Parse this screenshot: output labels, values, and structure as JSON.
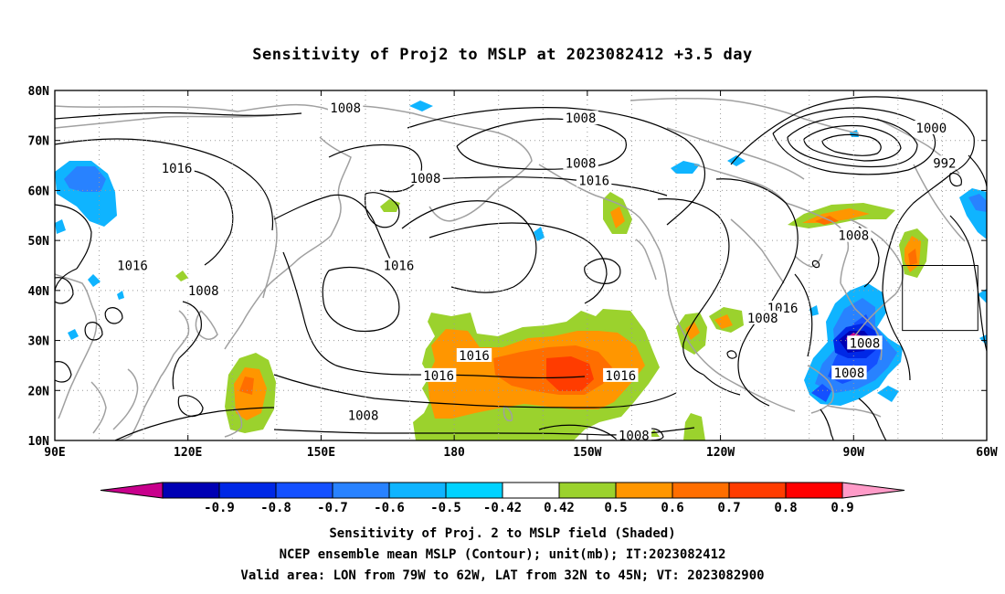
{
  "title": "Sensitivity of Proj2 to MSLP at 2023082412 +3.5 day",
  "map": {
    "lon_range": [
      90,
      300
    ],
    "lat_range": [
      10,
      80
    ],
    "lon_ticks": [
      {
        "lon": 90,
        "label": "90E"
      },
      {
        "lon": 120,
        "label": "120E"
      },
      {
        "lon": 150,
        "label": "150E"
      },
      {
        "lon": 180,
        "label": "180"
      },
      {
        "lon": 210,
        "label": "150W"
      },
      {
        "lon": 240,
        "label": "120W"
      },
      {
        "lon": 270,
        "label": "90W"
      },
      {
        "lon": 300,
        "label": "60W"
      }
    ],
    "lat_ticks": [
      {
        "lat": 10,
        "label": "10N"
      },
      {
        "lat": 20,
        "label": "20N"
      },
      {
        "lat": 30,
        "label": "30N"
      },
      {
        "lat": 40,
        "label": "40N"
      },
      {
        "lat": 50,
        "label": "50N"
      },
      {
        "lat": 60,
        "label": "60N"
      },
      {
        "lat": 70,
        "label": "70N"
      },
      {
        "lat": 80,
        "label": "80N"
      }
    ],
    "valid_box": {
      "lon_min": 281,
      "lon_max": 298,
      "lat_min": 32,
      "lat_max": 45
    },
    "contour_labels": [
      {
        "text": "1008",
        "lon": 155.5,
        "lat": 76.5
      },
      {
        "text": "1008",
        "lon": 208.5,
        "lat": 74.5
      },
      {
        "text": "1000",
        "lon": 287.5,
        "lat": 72.5
      },
      {
        "text": "1016",
        "lon": 117.5,
        "lat": 64.5
      },
      {
        "text": "1008",
        "lon": 208.5,
        "lat": 65.5
      },
      {
        "text": "992",
        "lon": 290.5,
        "lat": 65.5
      },
      {
        "text": "1008",
        "lon": 173.5,
        "lat": 62.5
      },
      {
        "text": "1016",
        "lon": 211.5,
        "lat": 62.0
      },
      {
        "text": "1016",
        "lon": 310.5,
        "lat": 60.5
      },
      {
        "text": "1008",
        "lon": 270.0,
        "lat": 51.0
      },
      {
        "text": "1016",
        "lon": 107.5,
        "lat": 45.0
      },
      {
        "text": "1016",
        "lon": 167.5,
        "lat": 45.0
      },
      {
        "text": "1008",
        "lon": 123.5,
        "lat": 40.0
      },
      {
        "text": "1016",
        "lon": 254.0,
        "lat": 36.5
      },
      {
        "text": "1008",
        "lon": 249.5,
        "lat": 34.5
      },
      {
        "text": "1016",
        "lon": 184.5,
        "lat": 27.0
      },
      {
        "text": "1008",
        "lon": 272.5,
        "lat": 29.5
      },
      {
        "text": "1016",
        "lon": 176.5,
        "lat": 23.0
      },
      {
        "text": "1016",
        "lon": 217.5,
        "lat": 23.0
      },
      {
        "text": "1008",
        "lon": 269.0,
        "lat": 23.5
      },
      {
        "text": "1008",
        "lon": 159.5,
        "lat": 15.0
      },
      {
        "text": "1008",
        "lon": 220.5,
        "lat": 11.0
      }
    ]
  },
  "colorbar": {
    "values": [
      "-0.9",
      "-0.8",
      "-0.7",
      "-0.6",
      "-0.5",
      "-0.42",
      "0.42",
      "0.5",
      "0.6",
      "0.7",
      "0.8",
      "0.9"
    ],
    "colors": [
      "#c8008c",
      "#0000b4",
      "#0028e6",
      "#1450ff",
      "#2882ff",
      "#0fb4ff",
      "#00d2ff",
      "#ffffff",
      "#9bd22d",
      "#ff9600",
      "#ff6e00",
      "#ff3c00",
      "#ff0000",
      "#ff9bc8"
    ]
  },
  "footer": {
    "line1": "Sensitivity of Proj. 2 to MSLP field (Shaded)",
    "line2": "NCEP ensemble mean MSLP (Contour); unit(mb); IT:2023082412",
    "line3": "Valid area: LON from 79W to 62W, LAT from 32N to 45N; VT: 2023082900"
  },
  "colors": {
    "coast": "#a0a0a0",
    "contour": "#000000",
    "grid": "#9a9a9a"
  }
}
